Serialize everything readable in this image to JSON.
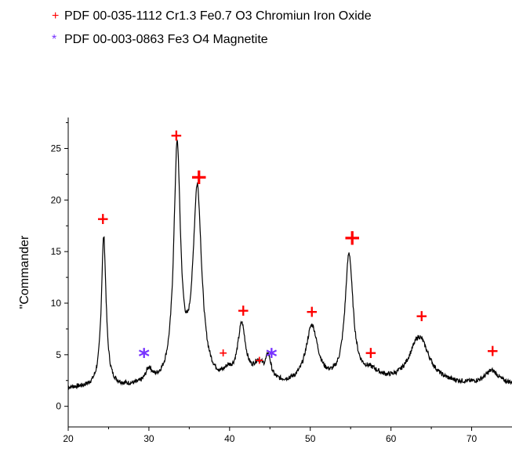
{
  "legend": {
    "items": [
      {
        "marker": "+",
        "color": "#ff0000",
        "text": "PDF 00-035-1112 Cr1.3 Fe0.7 O3 Chromiun Iron Oxide"
      },
      {
        "marker": "*",
        "color": "#7733ff",
        "text": "PDF 00-003-0863 Fe3 O4 Magnetite"
      }
    ]
  },
  "chart_data": {
    "type": "line",
    "title": "",
    "xlabel": "",
    "ylabel": "\"Commander",
    "xlim": [
      20,
      75
    ],
    "ylim": [
      -2,
      28
    ],
    "xticks": [
      20,
      30,
      40,
      50,
      60,
      70
    ],
    "yticks": [
      0,
      5,
      10,
      15,
      20,
      25
    ],
    "grid": false,
    "series": [
      {
        "color": "#000000",
        "baseline": 1.7,
        "peaks": [
          {
            "x": 24.4,
            "height": 14.6,
            "width": 0.35
          },
          {
            "x": 30.0,
            "height": 1.3,
            "width": 0.5
          },
          {
            "x": 33.5,
            "height": 22.6,
            "width": 0.5
          },
          {
            "x": 36.0,
            "height": 18.7,
            "width": 0.65
          },
          {
            "x": 39.8,
            "height": 0.8,
            "width": 0.6
          },
          {
            "x": 41.5,
            "height": 5.5,
            "width": 0.6
          },
          {
            "x": 43.6,
            "height": 1.7,
            "width": 0.8
          },
          {
            "x": 44.8,
            "height": 2.2,
            "width": 0.4
          },
          {
            "x": 50.2,
            "height": 5.6,
            "width": 0.9
          },
          {
            "x": 54.8,
            "height": 12.3,
            "width": 0.6
          },
          {
            "x": 57.5,
            "height": 1.0,
            "width": 1.5
          },
          {
            "x": 63.5,
            "height": 4.6,
            "width": 1.5
          },
          {
            "x": 72.5,
            "height": 1.3,
            "width": 1.0
          }
        ]
      }
    ],
    "annotations": [
      {
        "marker": "+",
        "x": 24.3,
        "y": 18.2,
        "color": "#ff0000",
        "size": "medium"
      },
      {
        "marker": "+",
        "x": 33.4,
        "y": 26.3,
        "color": "#ff0000",
        "size": "medium"
      },
      {
        "marker": "+",
        "x": 36.2,
        "y": 22.3,
        "color": "#ff0000",
        "size": "large"
      },
      {
        "marker": "+",
        "x": 39.2,
        "y": 5.2,
        "color": "#ff0000",
        "size": "small"
      },
      {
        "marker": "+",
        "x": 41.7,
        "y": 9.3,
        "color": "#ff0000",
        "size": "medium"
      },
      {
        "marker": "+",
        "x": 43.7,
        "y": 4.5,
        "color": "#ff0000",
        "size": "small"
      },
      {
        "marker": "+",
        "x": 50.2,
        "y": 9.2,
        "color": "#ff0000",
        "size": "medium"
      },
      {
        "marker": "+",
        "x": 55.2,
        "y": 16.4,
        "color": "#ff0000",
        "size": "large"
      },
      {
        "marker": "+",
        "x": 57.5,
        "y": 5.2,
        "color": "#ff0000",
        "size": "medium"
      },
      {
        "marker": "+",
        "x": 63.8,
        "y": 8.8,
        "color": "#ff0000",
        "size": "medium"
      },
      {
        "marker": "+",
        "x": 72.6,
        "y": 5.4,
        "color": "#ff0000",
        "size": "medium"
      },
      {
        "marker": "*",
        "x": 29.4,
        "y": 5.3,
        "color": "#7733ff",
        "size": "large"
      },
      {
        "marker": "*",
        "x": 45.2,
        "y": 5.3,
        "color": "#7733ff",
        "size": "large"
      }
    ]
  }
}
